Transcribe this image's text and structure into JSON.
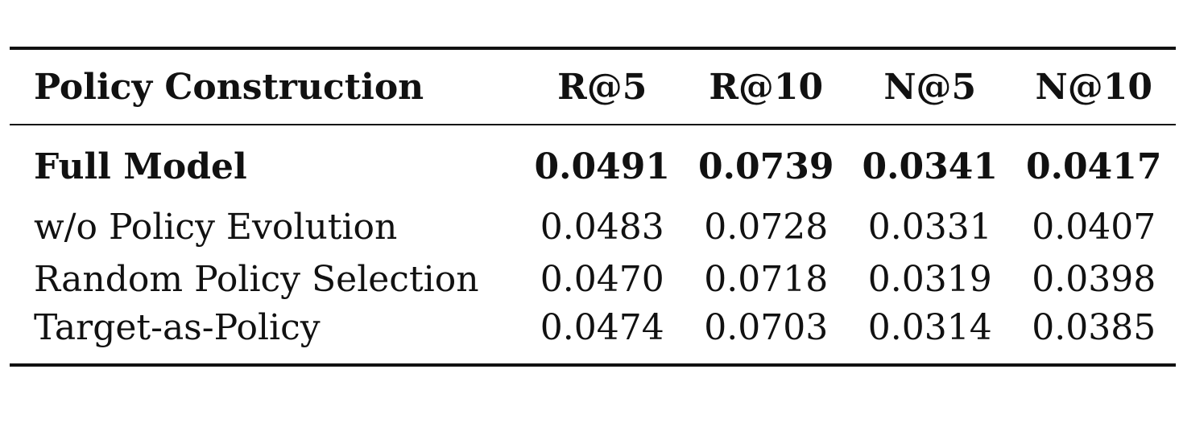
{
  "table": {
    "headers": [
      "Policy Construction",
      "R@5",
      "R@10",
      "N@5",
      "N@10"
    ],
    "rows": [
      {
        "label": "Full Model",
        "values": [
          "0.0491",
          "0.0739",
          "0.0341",
          "0.0417"
        ],
        "bold": true
      },
      {
        "label": "w/o Policy Evolution",
        "values": [
          "0.0483",
          "0.0728",
          "0.0331",
          "0.0407"
        ],
        "bold": false
      },
      {
        "label": "Random Policy Selection",
        "values": [
          "0.0470",
          "0.0718",
          "0.0319",
          "0.0398"
        ],
        "bold": false
      },
      {
        "label": "Target-as-Policy",
        "values": [
          "0.0474",
          "0.0703",
          "0.0314",
          "0.0385"
        ],
        "bold": false
      }
    ]
  }
}
